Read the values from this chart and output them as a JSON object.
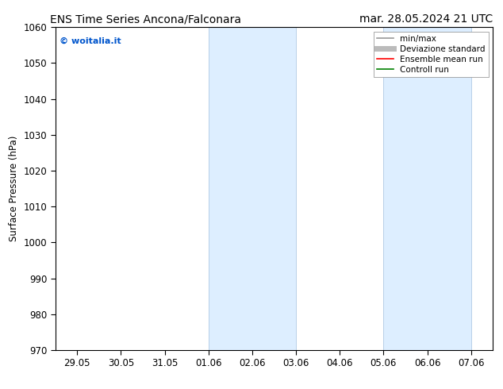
{
  "title_left": "ENS Time Series Ancona/Falconara",
  "title_right": "mar. 28.05.2024 21 UTC",
  "ylabel": "Surface Pressure (hPa)",
  "ylim": [
    970,
    1060
  ],
  "yticks": [
    970,
    980,
    990,
    1000,
    1010,
    1020,
    1030,
    1040,
    1050,
    1060
  ],
  "xlabel_dates": [
    "29.05",
    "30.05",
    "31.05",
    "01.06",
    "02.06",
    "03.06",
    "04.06",
    "05.06",
    "06.06",
    "07.06"
  ],
  "watermark": "© woitalia.it",
  "watermark_color": "#0055cc",
  "background_color": "#ffffff",
  "plot_bg_color": "#ffffff",
  "shaded_bands": [
    {
      "xstart": 3,
      "xend": 5
    },
    {
      "xstart": 7,
      "xend": 9
    }
  ],
  "shaded_color": "#ddeeff",
  "shaded_edge_color": "#b8d0e8",
  "legend_items": [
    {
      "label": "min/max",
      "color": "#999999",
      "lw": 1.2
    },
    {
      "label": "Deviazione standard",
      "color": "#bbbbbb",
      "lw": 5
    },
    {
      "label": "Ensemble mean run",
      "color": "#ff0000",
      "lw": 1.2
    },
    {
      "label": "Controll run",
      "color": "#008000",
      "lw": 1.2
    }
  ],
  "title_fontsize": 10,
  "tick_fontsize": 8.5,
  "legend_fontsize": 7.5,
  "ylabel_fontsize": 8.5,
  "watermark_fontsize": 8
}
